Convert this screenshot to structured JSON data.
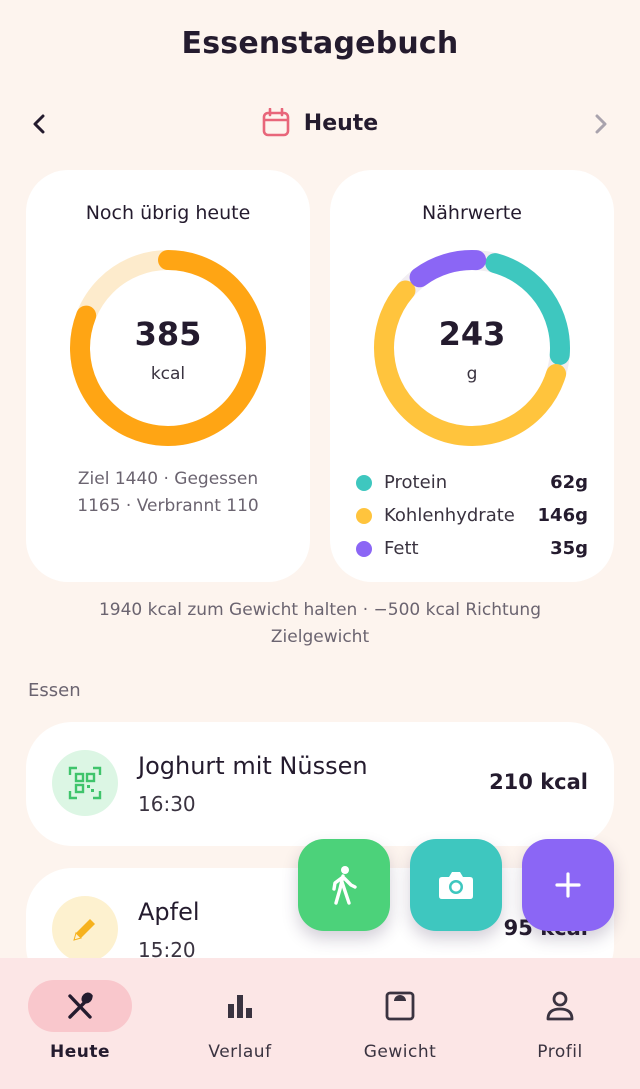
{
  "header": {
    "title": "Essenstagebuch"
  },
  "date_nav": {
    "label": "Heute",
    "icon": "calendar-icon",
    "icon_color": "#e8667a"
  },
  "remaining_card": {
    "title": "Noch übrig heute",
    "value": "385",
    "unit": "kcal",
    "progress_fraction": 0.81,
    "stats_line1": "Ziel 1440 · Gegessen",
    "stats_line2": "1165 · Verbrannt 110",
    "ring_color": "#ffa514",
    "track_color": "#fdebcc"
  },
  "nutrients_card": {
    "title": "Nährwerte",
    "value": "243",
    "unit": "g",
    "items": [
      {
        "name": "Protein",
        "value": "62g",
        "grams": 62,
        "color": "#3ec7bf"
      },
      {
        "name": "Kohlenhydrate",
        "value": "146g",
        "grams": 146,
        "color": "#ffc43d"
      },
      {
        "name": "Fett",
        "value": "35g",
        "grams": 35,
        "color": "#8b66f5"
      }
    ]
  },
  "maintenance": {
    "line1": "1940 kcal zum Gewicht halten · −500 kcal Richtung",
    "line2": "Zielgewicht"
  },
  "meals_section": {
    "label": "Essen"
  },
  "meals": [
    {
      "name": "Joghurt mit Nüssen",
      "time": "16:30",
      "kcal": "210 kcal",
      "icon": "qr-code-icon",
      "icon_bg": "#dcf6e4",
      "icon_color": "#3fc46b"
    },
    {
      "name": "Apfel",
      "time": "15:20",
      "kcal": "95 kcal",
      "icon": "pencil-icon",
      "icon_bg": "#fdf1cf",
      "icon_color": "#f6b21e"
    }
  ],
  "fabs": [
    {
      "name": "walk",
      "icon": "walking-icon",
      "color": "#4cd27a"
    },
    {
      "name": "camera",
      "icon": "camera-icon",
      "color": "#3ec7bf"
    },
    {
      "name": "add",
      "icon": "plus-icon",
      "color": "#8b66f5"
    }
  ],
  "bottom_nav": {
    "items": [
      {
        "label": "Heute",
        "icon": "fork-knife-icon",
        "active": true
      },
      {
        "label": "Verlauf",
        "icon": "bar-chart-icon",
        "active": false
      },
      {
        "label": "Gewicht",
        "icon": "scale-icon",
        "active": false
      },
      {
        "label": "Profil",
        "icon": "person-icon",
        "active": false
      }
    ]
  }
}
